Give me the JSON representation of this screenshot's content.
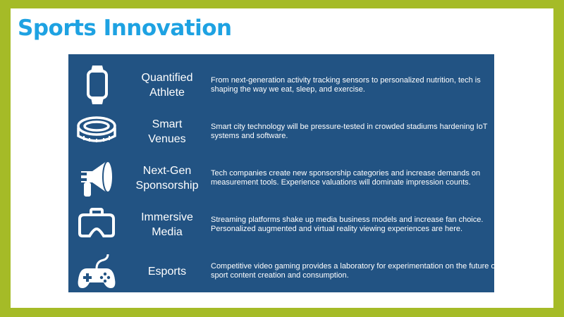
{
  "title": "Sports Innovation",
  "colors": {
    "background": "#a5bb27",
    "title": "#1ea2e2",
    "panel": "#225383"
  },
  "items": [
    {
      "icon": "smartwatch-icon",
      "label": "Quantified Athlete",
      "description": "From next-generation activity tracking sensors to personalized nutrition, tech is shaping the way we eat, sleep, and exercise."
    },
    {
      "icon": "stadium-icon",
      "label": "Smart Venues",
      "description": "Smart city technology will be pressure-tested in crowded stadiums hardening IoT systems and software."
    },
    {
      "icon": "megaphone-icon",
      "label": "Next-Gen Sponsorship",
      "description": "Tech companies create new sponsorship categories and increase demands on measurement tools. Experience valuations will dominate impression counts."
    },
    {
      "icon": "vr-headset-icon",
      "label": "Immersive Media",
      "description": "Streaming platforms shake up media business models and increase fan choice. Personalized augmented and virtual reality viewing experiences are here."
    },
    {
      "icon": "gamepad-icon",
      "label": "Esports",
      "description": "Competitive video gaming provides a laboratory for experimentation on the future of sport content creation and consumption."
    }
  ]
}
